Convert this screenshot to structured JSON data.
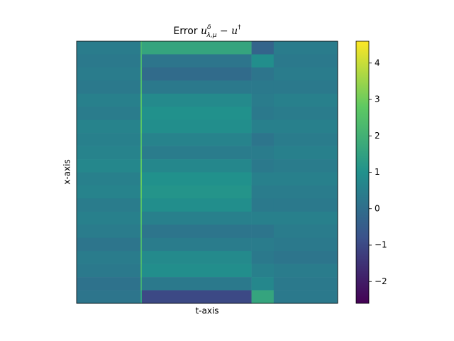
{
  "chart_data": {
    "type": "heatmap",
    "title": {
      "prefix": "Error",
      "base": "u",
      "sup": "δ",
      "sub": "λ,μ",
      "rest": "− u",
      "sup2": "†"
    },
    "x_label": "t-axis",
    "y_label": "x-axis",
    "colormap": "viridis",
    "xlim": [
      0,
      1
    ],
    "ylim": [
      0,
      1
    ],
    "xbins": [
      0,
      0.245,
      0.25,
      0.67,
      0.755,
      1
    ],
    "z": [
      [
        0.4,
        2.2,
        1.6,
        -0.3,
        0.4
      ],
      [
        0.3,
        2.3,
        0.2,
        0.9,
        0.3
      ],
      [
        0.4,
        2.4,
        -0.1,
        0.2,
        0.4
      ],
      [
        0.3,
        2.4,
        0.3,
        0.3,
        0.3
      ],
      [
        0.5,
        2.6,
        0.8,
        0.4,
        0.5
      ],
      [
        0.4,
        2.6,
        1.0,
        0.3,
        0.4
      ],
      [
        0.6,
        2.7,
        0.9,
        0.5,
        0.5
      ],
      [
        0.5,
        2.5,
        0.6,
        0.2,
        0.4
      ],
      [
        0.6,
        2.6,
        0.4,
        0.4,
        0.5
      ],
      [
        0.7,
        2.8,
        0.7,
        0.3,
        0.4
      ],
      [
        0.5,
        2.9,
        1.0,
        0.5,
        0.5
      ],
      [
        0.6,
        2.8,
        1.1,
        0.4,
        0.4
      ],
      [
        0.4,
        2.6,
        0.9,
        0.3,
        0.3
      ],
      [
        0.5,
        2.5,
        0.5,
        0.5,
        0.5
      ],
      [
        0.4,
        2.4,
        0.2,
        0.2,
        0.4
      ],
      [
        0.2,
        2.3,
        0.4,
        0.4,
        0.3
      ],
      [
        0.4,
        2.3,
        0.8,
        0.3,
        0.2
      ],
      [
        0.3,
        2.2,
        0.9,
        0.5,
        0.4
      ],
      [
        0.1,
        2.0,
        0.3,
        0.7,
        0.3
      ],
      [
        0.2,
        1.5,
        -1.0,
        1.6,
        0.3
      ]
    ],
    "clim": [
      -2.6,
      4.6
    ],
    "cticks": [
      {
        "value": -2,
        "label": "−2"
      },
      {
        "value": -1,
        "label": "−1"
      },
      0,
      1,
      2,
      3,
      4
    ]
  }
}
